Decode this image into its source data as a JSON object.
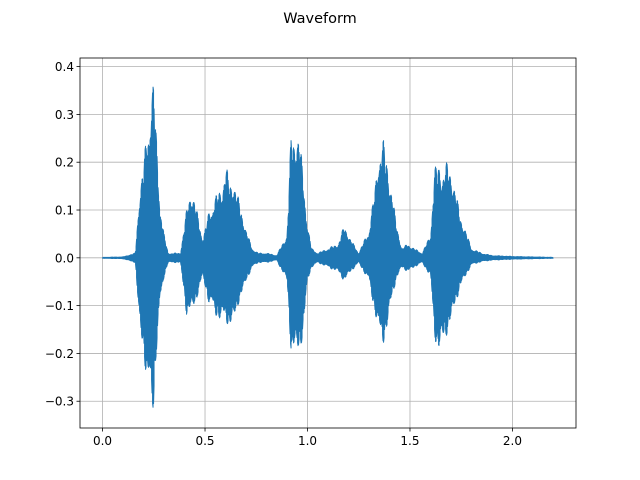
{
  "chart_data": {
    "type": "line",
    "title": "Waveform",
    "xlabel": "",
    "ylabel": "",
    "xlim": [
      -0.11,
      2.31
    ],
    "ylim": [
      -0.356,
      0.418
    ],
    "x_ticks": [
      0.0,
      0.5,
      1.0,
      1.5,
      2.0
    ],
    "x_tick_labels": [
      "0.0",
      "0.5",
      "1.0",
      "1.5",
      "2.0"
    ],
    "y_ticks": [
      -0.3,
      -0.2,
      -0.1,
      0.0,
      0.1,
      0.2,
      0.3,
      0.4
    ],
    "y_tick_labels": [
      "−0.3",
      "−0.2",
      "−0.1",
      "0.0",
      "0.1",
      "0.2",
      "0.3",
      "0.4"
    ],
    "grid": true,
    "color": "#1f77b4",
    "duration": 2.2,
    "series": [
      {
        "x": [
          0.0,
          0.1,
          0.16,
          0.18,
          0.2,
          0.22,
          0.24,
          0.25,
          0.26,
          0.28,
          0.3,
          0.32,
          0.35,
          0.38,
          0.41,
          0.43,
          0.45,
          0.47,
          0.49,
          0.52,
          0.55,
          0.58,
          0.6,
          0.62,
          0.64,
          0.66,
          0.68,
          0.7,
          0.73,
          0.76,
          0.8,
          0.85,
          0.9,
          0.92,
          0.94,
          0.96,
          0.98,
          1.0,
          1.02,
          1.05,
          1.1,
          1.15,
          1.18,
          1.21,
          1.25,
          1.3,
          1.33,
          1.35,
          1.37,
          1.39,
          1.41,
          1.43,
          1.46,
          1.49,
          1.52,
          1.56,
          1.6,
          1.62,
          1.64,
          1.66,
          1.68,
          1.7,
          1.72,
          1.74,
          1.77,
          1.8,
          1.85,
          1.9,
          2.0,
          2.1,
          2.2
        ],
        "max": [
          0.001,
          0.002,
          0.01,
          0.14,
          0.2,
          0.28,
          0.36,
          0.38,
          0.28,
          0.12,
          0.05,
          0.01,
          0.01,
          0.01,
          0.1,
          0.15,
          0.12,
          0.08,
          0.04,
          0.1,
          0.13,
          0.15,
          0.2,
          0.16,
          0.17,
          0.13,
          0.1,
          0.06,
          0.02,
          0.01,
          0.01,
          0.005,
          0.05,
          0.26,
          0.27,
          0.26,
          0.17,
          0.07,
          0.02,
          0.01,
          0.02,
          0.03,
          0.07,
          0.04,
          0.01,
          0.06,
          0.15,
          0.24,
          0.25,
          0.2,
          0.15,
          0.08,
          0.02,
          0.03,
          0.02,
          0.01,
          0.05,
          0.19,
          0.2,
          0.19,
          0.2,
          0.19,
          0.15,
          0.1,
          0.06,
          0.02,
          0.01,
          0.005,
          0.003,
          0.002,
          0.001
        ],
        "min": [
          -0.001,
          -0.002,
          -0.01,
          -0.15,
          -0.2,
          -0.28,
          -0.32,
          -0.33,
          -0.22,
          -0.1,
          -0.04,
          -0.01,
          -0.01,
          -0.01,
          -0.12,
          -0.12,
          -0.1,
          -0.07,
          -0.04,
          -0.1,
          -0.12,
          -0.14,
          -0.13,
          -0.15,
          -0.14,
          -0.1,
          -0.08,
          -0.05,
          -0.02,
          -0.01,
          -0.01,
          -0.005,
          -0.05,
          -0.2,
          -0.21,
          -0.2,
          -0.16,
          -0.05,
          -0.02,
          -0.01,
          -0.02,
          -0.03,
          -0.05,
          -0.03,
          -0.01,
          -0.05,
          -0.12,
          -0.17,
          -0.18,
          -0.15,
          -0.09,
          -0.05,
          -0.02,
          -0.03,
          -0.02,
          -0.01,
          -0.04,
          -0.17,
          -0.2,
          -0.19,
          -0.16,
          -0.14,
          -0.1,
          -0.07,
          -0.04,
          -0.015,
          -0.008,
          -0.005,
          -0.003,
          -0.002,
          -0.001
        ]
      }
    ]
  }
}
